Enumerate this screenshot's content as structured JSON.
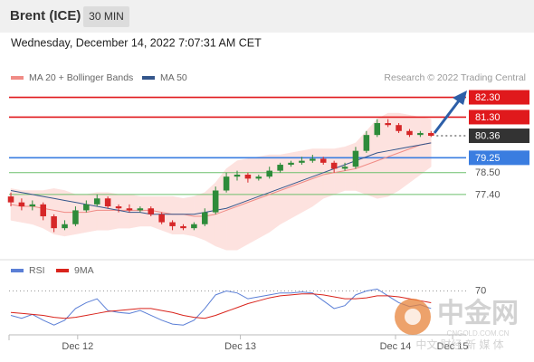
{
  "chart_data": {
    "type": "candlestick",
    "title": "Brent (ICE)",
    "interval": "30 MIN",
    "subtitle": "Wednesday, December 14, 2022 7:07:31 AM CET",
    "source": "Research © 2022 Trading Central",
    "ylim": [
      74.2,
      83.1
    ],
    "xlim": [
      0,
      42
    ],
    "xticks": [
      {
        "value": 6.2,
        "label": "Dec 12"
      },
      {
        "value": 21.3,
        "label": "Dec 13"
      },
      {
        "value": 35.7,
        "label": "Dec 14"
      },
      {
        "value": 41.0,
        "label": "Dec 15"
      }
    ],
    "up_color": "#2e8b3a",
    "down_color": "#d62728",
    "candles": [
      [
        77.3,
        77.5,
        76.8,
        77.0
      ],
      [
        77.0,
        77.2,
        76.6,
        76.8
      ],
      [
        76.8,
        77.1,
        76.6,
        76.9
      ],
      [
        76.9,
        77.0,
        76.1,
        76.3
      ],
      [
        76.3,
        76.4,
        75.5,
        75.7
      ],
      [
        75.7,
        76.1,
        75.6,
        75.9
      ],
      [
        75.9,
        76.8,
        75.8,
        76.6
      ],
      [
        76.6,
        77.1,
        76.5,
        76.9
      ],
      [
        76.9,
        77.4,
        76.8,
        77.2
      ],
      [
        77.2,
        77.3,
        76.7,
        76.8
      ],
      [
        76.8,
        76.9,
        76.5,
        76.7
      ],
      [
        76.7,
        76.9,
        76.5,
        76.6
      ],
      [
        76.6,
        76.8,
        76.5,
        76.7
      ],
      [
        76.7,
        76.8,
        76.3,
        76.4
      ],
      [
        76.4,
        76.5,
        75.9,
        76.0
      ],
      [
        76.0,
        76.1,
        75.6,
        75.8
      ],
      [
        75.8,
        75.9,
        75.6,
        75.7
      ],
      [
        75.7,
        76.0,
        75.6,
        75.9
      ],
      [
        75.9,
        76.7,
        75.8,
        76.5
      ],
      [
        76.5,
        77.8,
        76.4,
        77.6
      ],
      [
        77.6,
        78.5,
        77.5,
        78.3
      ],
      [
        78.3,
        78.6,
        78.1,
        78.4
      ],
      [
        78.4,
        78.5,
        78.0,
        78.2
      ],
      [
        78.2,
        78.4,
        78.1,
        78.3
      ],
      [
        78.3,
        78.8,
        78.2,
        78.6
      ],
      [
        78.6,
        79.0,
        78.5,
        78.9
      ],
      [
        78.9,
        79.1,
        78.8,
        79.0
      ],
      [
        79.0,
        79.3,
        78.9,
        79.1
      ],
      [
        79.1,
        79.4,
        79.0,
        79.2
      ],
      [
        79.2,
        79.3,
        78.9,
        79.0
      ],
      [
        79.0,
        79.1,
        78.5,
        78.7
      ],
      [
        78.7,
        79.0,
        78.6,
        78.8
      ],
      [
        78.8,
        79.8,
        78.7,
        79.6
      ],
      [
        79.6,
        80.6,
        79.5,
        80.4
      ],
      [
        80.4,
        81.2,
        80.3,
        81.0
      ],
      [
        81.0,
        81.2,
        80.8,
        80.9
      ],
      [
        80.9,
        81.0,
        80.5,
        80.6
      ],
      [
        80.6,
        80.7,
        80.3,
        80.4
      ],
      [
        80.4,
        80.6,
        80.3,
        80.5
      ],
      [
        80.5,
        80.6,
        80.3,
        80.36
      ]
    ],
    "series": [
      {
        "name": "MA 20 + Bollinger Bands",
        "color": "#f08c86",
        "band_color": "#fde2df",
        "values": [
          76.9,
          76.8,
          76.8,
          76.7,
          76.6,
          76.5,
          76.5,
          76.5,
          76.6,
          76.6,
          76.6,
          76.6,
          76.6,
          76.6,
          76.5,
          76.4,
          76.4,
          76.3,
          76.3,
          76.4,
          76.6,
          76.8,
          77.0,
          77.2,
          77.4,
          77.6,
          77.8,
          78.0,
          78.2,
          78.4,
          78.5,
          78.6,
          78.7,
          78.9,
          79.1,
          79.3,
          79.5,
          79.7,
          79.9,
          80.0
        ],
        "upper": [
          77.7,
          77.6,
          77.6,
          77.6,
          77.7,
          77.6,
          77.4,
          77.4,
          77.5,
          77.5,
          77.4,
          77.4,
          77.3,
          77.3,
          77.3,
          77.3,
          77.2,
          77.3,
          77.5,
          78.0,
          78.7,
          79.1,
          79.2,
          79.3,
          79.4,
          79.4,
          79.5,
          79.6,
          79.7,
          79.7,
          79.7,
          79.8,
          80.0,
          80.6,
          81.2,
          81.5,
          81.5,
          81.4,
          81.3,
          81.2
        ],
        "lower": [
          76.1,
          76.0,
          75.9,
          75.7,
          75.4,
          75.3,
          75.4,
          75.5,
          75.6,
          75.6,
          75.7,
          75.7,
          75.8,
          75.8,
          75.6,
          75.4,
          75.4,
          75.3,
          75.1,
          74.8,
          74.6,
          74.6,
          74.9,
          75.2,
          75.5,
          75.9,
          76.2,
          76.5,
          76.8,
          77.2,
          77.4,
          77.6,
          77.6,
          77.4,
          77.2,
          77.3,
          77.6,
          78.0,
          78.4,
          78.8
        ]
      },
      {
        "name": "MA 50",
        "color": "#34568b",
        "values": [
          77.6,
          77.5,
          77.4,
          77.3,
          77.2,
          77.1,
          77.0,
          76.9,
          76.8,
          76.7,
          76.6,
          76.5,
          76.5,
          76.4,
          76.4,
          76.4,
          76.4,
          76.4,
          76.5,
          76.6,
          76.7,
          76.9,
          77.1,
          77.3,
          77.5,
          77.7,
          77.9,
          78.1,
          78.3,
          78.5,
          78.7,
          78.9,
          79.1,
          79.3,
          79.5,
          79.6,
          79.7,
          79.8,
          79.9,
          80.0
        ]
      }
    ],
    "levels": [
      {
        "value": 82.3,
        "label": "82.30",
        "color": "#e0191c",
        "style": "box"
      },
      {
        "value": 81.3,
        "label": "81.30",
        "color": "#e0191c",
        "style": "box"
      },
      {
        "value": 80.36,
        "label": "80.36",
        "color": "#333333",
        "style": "box",
        "dash": true
      },
      {
        "value": 79.25,
        "label": "79.25",
        "color": "#3a7de0",
        "style": "box"
      },
      {
        "value": 78.5,
        "label": "78.50",
        "color": "#6cbf6c",
        "style": "text"
      },
      {
        "value": 77.4,
        "label": "77.40",
        "color": "#6cbf6c",
        "style": "text"
      }
    ],
    "rsi": {
      "ylim": [
        25,
        90
      ],
      "yticks": [
        70
      ],
      "series": [
        {
          "name": "RSI",
          "color": "#5b7fd6",
          "values": [
            45,
            42,
            46,
            40,
            35,
            40,
            52,
            58,
            62,
            50,
            48,
            47,
            50,
            45,
            40,
            36,
            35,
            40,
            52,
            66,
            70,
            68,
            62,
            64,
            66,
            68,
            68,
            69,
            68,
            60,
            52,
            55,
            66,
            70,
            72,
            65,
            58,
            54,
            56,
            52
          ]
        },
        {
          "name": "9MA",
          "color": "#d9241c",
          "values": [
            48,
            47,
            46,
            45,
            43,
            42,
            43,
            45,
            47,
            49,
            50,
            51,
            52,
            52,
            50,
            48,
            45,
            43,
            42,
            45,
            49,
            53,
            57,
            60,
            63,
            65,
            66,
            67,
            67,
            66,
            64,
            62,
            62,
            63,
            65,
            65,
            64,
            62,
            60,
            58
          ]
        }
      ]
    },
    "watermark": {
      "name": "中金网",
      "domain": "CNGOLD.COM.CN",
      "tagline": "中文 财经 新 媒 体"
    }
  }
}
